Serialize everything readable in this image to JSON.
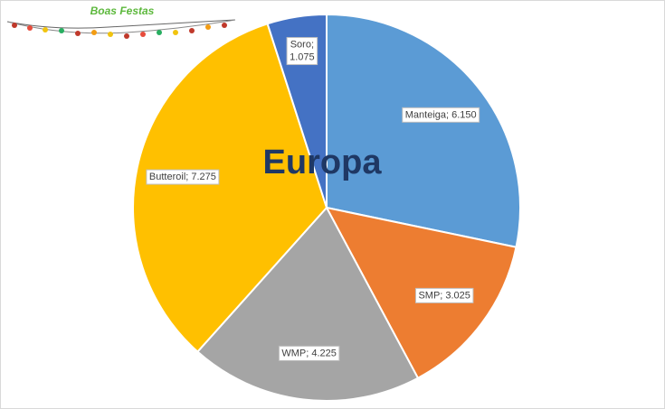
{
  "chart_data": {
    "type": "pie",
    "title": "Europa",
    "decoration_text": "Boas Festas",
    "values": [
      6150,
      3025,
      4225,
      7275,
      1075
    ],
    "value_labels": [
      "Manteiga; 6.150",
      "SMP; 3.025",
      "WMP; 4.225",
      "Butteroil; 7.275",
      "Soro; 1.075"
    ],
    "colors": [
      "#5b9bd5",
      "#ed7d31",
      "#a5a5a5",
      "#ffc000",
      "#4472c4"
    ]
  }
}
